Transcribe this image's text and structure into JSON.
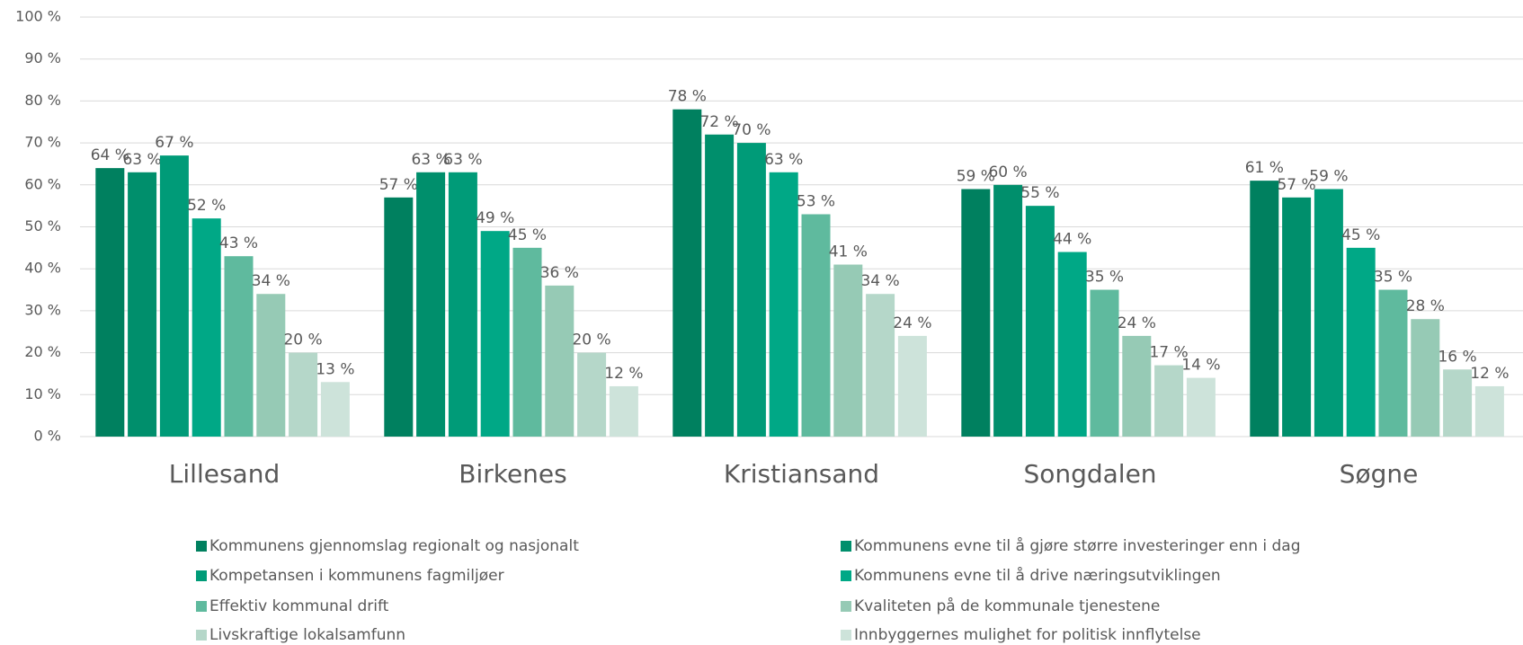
{
  "chart_data": {
    "type": "bar",
    "categories": [
      "Lillesand",
      "Birkenes",
      "Kristiansand",
      "Songdalen",
      "Søgne"
    ],
    "series": [
      {
        "name": "Kommunens gjennomslag regionalt og nasjonalt",
        "color": "#00805f",
        "values": [
          64,
          57,
          78,
          59,
          61
        ],
        "value_labels": [
          "64 %",
          "57 %",
          "78 %",
          "59 %",
          "61 %"
        ]
      },
      {
        "name": "Kommunens evne til å gjøre større investeringer enn i dag",
        "color": "#008f6c",
        "values": [
          63,
          63,
          72,
          60,
          57
        ],
        "value_labels": [
          "63 %",
          "63 %",
          "72 %",
          "60 %",
          "57 %"
        ]
      },
      {
        "name": "Kompetansen i kommunens fagmiljøer",
        "color": "#009b78",
        "values": [
          67,
          63,
          70,
          55,
          59
        ],
        "value_labels": [
          "67 %",
          "63 %",
          "70 %",
          "55 %",
          "59 %"
        ]
      },
      {
        "name": "Kommunens evne til å drive næringsutviklingen",
        "color": "#00a886",
        "values": [
          52,
          49,
          63,
          44,
          45
        ],
        "value_labels": [
          "52 %",
          "49 %",
          "63 %",
          "44 %",
          "45 %"
        ]
      },
      {
        "name": "Effektiv kommunal drift",
        "color": "#5fba9e",
        "values": [
          43,
          45,
          53,
          35,
          35
        ],
        "value_labels": [
          "43 %",
          "45 %",
          "53 %",
          "35 %",
          "35 %"
        ]
      },
      {
        "name": "Kvaliteten på de kommunale tjenestene",
        "color": "#96cab5",
        "values": [
          34,
          36,
          41,
          24,
          28
        ],
        "value_labels": [
          "34 %",
          "36 %",
          "41 %",
          "24 %",
          "28 %"
        ]
      },
      {
        "name": "Livskraftige lokalsamfunn",
        "color": "#b5d7c9",
        "values": [
          20,
          20,
          34,
          17,
          16
        ],
        "value_labels": [
          "20 %",
          "20 %",
          "34 %",
          "17 %",
          "16 %"
        ]
      },
      {
        "name": "Innbyggernes mulighet for politisk innflytelse",
        "color": "#cde3da",
        "values": [
          13,
          12,
          24,
          14,
          12
        ],
        "value_labels": [
          "13 %",
          "12 %",
          "24 %",
          "14 %",
          "12 %"
        ]
      }
    ],
    "ylim": [
      0,
      100
    ],
    "yticks": [
      {
        "value": 0,
        "label": "0 %"
      },
      {
        "value": 10,
        "label": "10 %"
      },
      {
        "value": 20,
        "label": "20 %"
      },
      {
        "value": 30,
        "label": "30 %"
      },
      {
        "value": 40,
        "label": "40 %"
      },
      {
        "value": 50,
        "label": "50 %"
      },
      {
        "value": 60,
        "label": "60 %"
      },
      {
        "value": 70,
        "label": "70 %"
      },
      {
        "value": 80,
        "label": "80 %"
      },
      {
        "value": 90,
        "label": "90 %"
      },
      {
        "value": 100,
        "label": "100 %"
      }
    ],
    "grid": true,
    "legend": "bottom"
  }
}
